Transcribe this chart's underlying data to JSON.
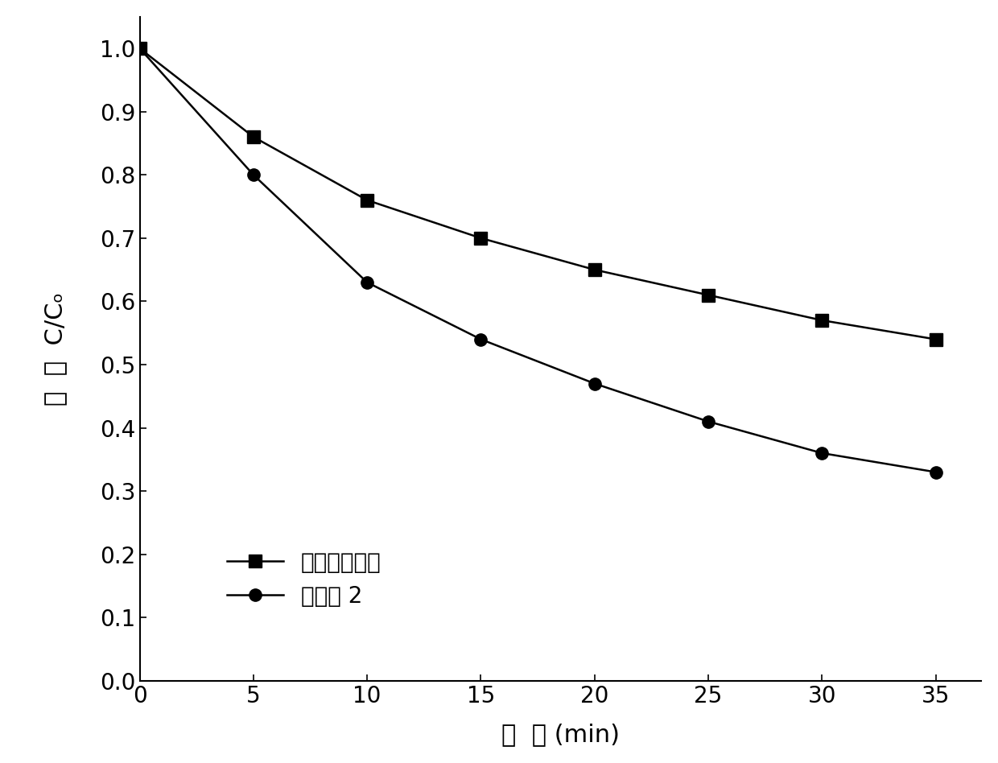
{
  "series1": {
    "x": [
      0,
      5,
      10,
      15,
      20,
      25,
      30,
      35
    ],
    "y": [
      1.0,
      0.86,
      0.76,
      0.7,
      0.65,
      0.61,
      0.57,
      0.54
    ],
    "label": "单独臭氧氧化",
    "marker": "s",
    "color": "#000000",
    "markersize": 11,
    "linewidth": 1.8
  },
  "series2": {
    "x": [
      0,
      5,
      10,
      15,
      20,
      25,
      30,
      35
    ],
    "y": [
      1.0,
      0.8,
      0.63,
      0.54,
      0.47,
      0.41,
      0.36,
      0.33
    ],
    "label": "实施例 2",
    "marker": "o",
    "color": "#000000",
    "markersize": 11,
    "linewidth": 1.8
  },
  "xlabel": "时  间 (min)",
  "ylabel_chinese": "苯  酚  C/C",
  "xlim": [
    0,
    37
  ],
  "ylim": [
    0.0,
    1.05
  ],
  "xticks": [
    0,
    5,
    10,
    15,
    20,
    25,
    30,
    35
  ],
  "yticks": [
    0.0,
    0.1,
    0.2,
    0.3,
    0.4,
    0.5,
    0.6,
    0.7,
    0.8,
    0.9,
    1.0
  ],
  "background_color": "#ffffff",
  "label_fontsize": 22,
  "tick_fontsize": 20,
  "legend_fontsize": 20
}
